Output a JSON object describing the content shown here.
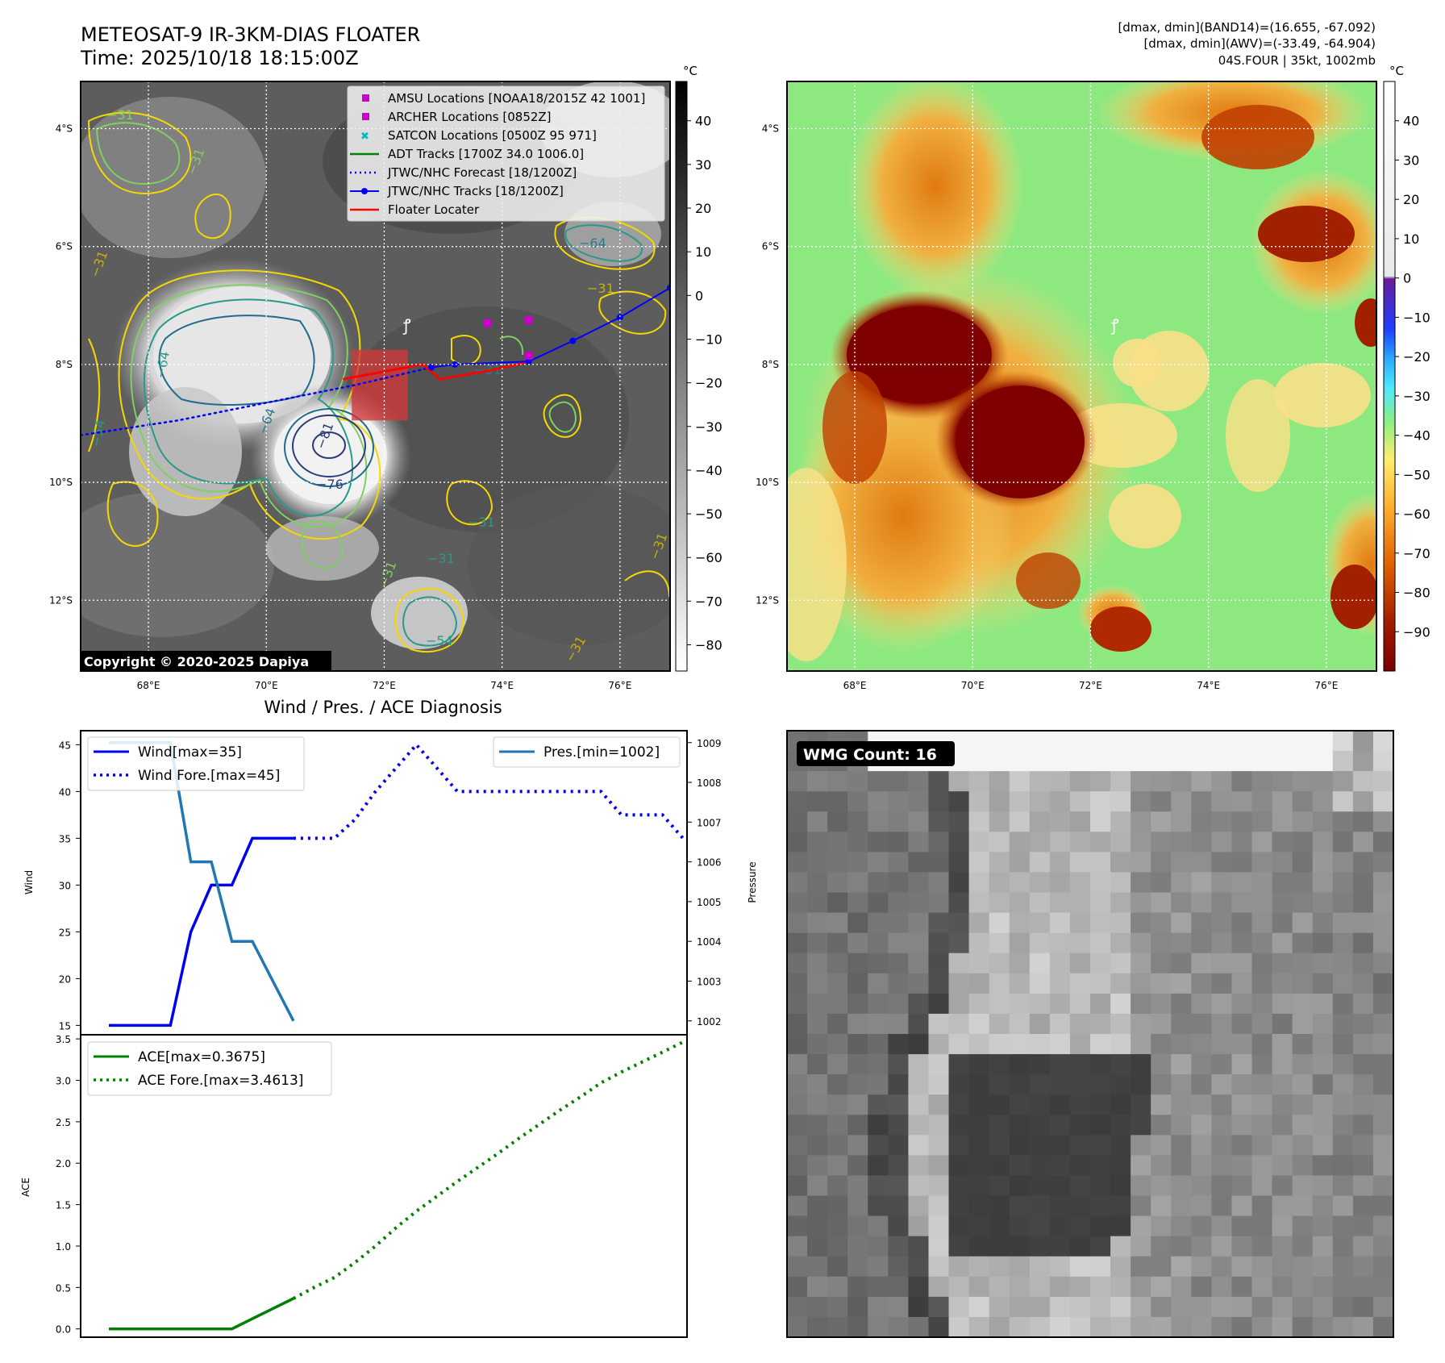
{
  "header": {
    "title_line1": "METEOSAT-9 IR-3KM-DIAS FLOATER",
    "title_line2": "Time: 2025/10/18 18:15:00Z",
    "info_line1": "[dmax, dmin](BAND14)=(16.655, -67.092)",
    "info_line2": "[dmax, dmin](AWV)=(-33.49, -64.904)",
    "info_line3": "04S.FOUR | 35kt, 1002mb"
  },
  "map_axes": {
    "lon_labels": [
      "68°E",
      "70°E",
      "72°E",
      "74°E",
      "76°E"
    ],
    "lon_values": [
      68,
      70,
      72,
      74,
      76
    ],
    "lon_range": [
      66.85,
      76.85
    ],
    "lat_labels": [
      "4°S",
      "6°S",
      "8°S",
      "10°S",
      "12°S"
    ],
    "lat_values": [
      -4,
      -6,
      -8,
      -10,
      -12
    ],
    "lat_range": [
      -3.2,
      -13.2
    ]
  },
  "ir_panel": {
    "colorbar_unit": "°C",
    "colorbar_ticks": [
      40,
      30,
      20,
      10,
      0,
      -10,
      -20,
      -30,
      -40,
      -50,
      -60,
      -70,
      -80
    ],
    "colorbar_range": [
      49,
      -86
    ],
    "contour_labels": [
      "−31",
      "−64",
      "−31",
      "−31",
      "−64",
      "−76",
      "−81",
      "−31",
      "−31",
      "−31",
      "−31",
      "−64",
      "−54",
      "−31",
      "−31",
      "−54",
      "−31"
    ],
    "copyright": "Copyright © 2020-2025 Dapiya",
    "legend": [
      {
        "label": "AMSU Locations [NOAA18/2015Z 42 1001]",
        "color": "#cc00cc",
        "kind": "square"
      },
      {
        "label": "ARCHER Locations [0852Z]",
        "color": "#cc00cc",
        "kind": "square"
      },
      {
        "label": "SATCON Locations [0500Z 95 971]",
        "color": "#00bbbb",
        "kind": "cross"
      },
      {
        "label": "ADT Tracks [1700Z 34.0 1006.0]",
        "color": "#008000",
        "kind": "line"
      },
      {
        "label": "JTWC/NHC Forecast [18/1200Z]",
        "color": "#0000ff",
        "kind": "dotted"
      },
      {
        "label": "JTWC/NHC Tracks [18/1200Z]",
        "color": "#0000ff",
        "kind": "marker-line"
      },
      {
        "label": "Floater Locater",
        "color": "#ff0000",
        "kind": "line"
      }
    ],
    "jtwc_track": [
      [
        72.8,
        -8.05
      ],
      [
        73.2,
        -8.0
      ],
      [
        74.45,
        -7.95
      ],
      [
        75.2,
        -7.6
      ],
      [
        76.0,
        -7.2
      ],
      [
        76.85,
        -6.7
      ]
    ],
    "jtwc_forecast": [
      [
        72.8,
        -8.05
      ],
      [
        71.5,
        -8.35
      ],
      [
        70.0,
        -8.65
      ],
      [
        68.5,
        -8.95
      ],
      [
        66.85,
        -9.2
      ]
    ],
    "floater_track": [
      [
        71.3,
        -8.25
      ],
      [
        72.65,
        -8.0
      ],
      [
        72.95,
        -8.25
      ],
      [
        73.8,
        -8.1
      ],
      [
        74.5,
        -7.95
      ]
    ],
    "amsu_points": [
      [
        73.75,
        -7.3
      ],
      [
        74.45,
        -7.25
      ],
      [
        74.45,
        -7.85
      ]
    ],
    "floater_box": {
      "lon": [
        71.45,
        72.4
      ],
      "lat": [
        -7.75,
        -8.95
      ]
    }
  },
  "awv_panel": {
    "colorbar_unit": "°C",
    "colorbar_ticks": [
      40,
      30,
      20,
      10,
      0,
      -10,
      -20,
      -30,
      -40,
      -50,
      -60,
      -70,
      -80,
      -90
    ],
    "colorbar_range": [
      50,
      -100
    ]
  },
  "diag": {
    "title": "Wind / Pres. / ACE Diagnosis",
    "wind_ylabel": "Wind",
    "pres_ylabel": "Pressure",
    "ace_ylabel": "ACE",
    "wind_ticks": [
      15,
      20,
      25,
      30,
      35,
      40,
      45
    ],
    "pres_ticks": [
      1002,
      1003,
      1004,
      1005,
      1006,
      1007,
      1008,
      1009
    ],
    "ace_ticks": [
      "0.0",
      "0.5",
      "1.0",
      "1.5",
      "2.0",
      "2.5",
      "3.0",
      "3.5"
    ],
    "legend_wind": "Wind[max=35]",
    "legend_wind_fore": "Wind Fore.[max=45]",
    "legend_pres": "Pres.[min=1002]",
    "legend_ace": "ACE[max=0.3675]",
    "legend_ace_fore": "ACE Fore.[max=3.4613]"
  },
  "chart_data": [
    {
      "type": "line",
      "title": "Wind / Pres. / ACE Diagnosis",
      "ylabel": "Wind",
      "y2label": "Pressure",
      "x": [
        0,
        1,
        2,
        3,
        4,
        5,
        6,
        7,
        8,
        9,
        10,
        11,
        12,
        13,
        14,
        15,
        16,
        17,
        18,
        19,
        20,
        21,
        22,
        23,
        24,
        25,
        26,
        27,
        28
      ],
      "ylim": [
        14,
        46.5
      ],
      "y2lim": [
        1001.65,
        1009.3
      ],
      "series": [
        {
          "name": "Wind[max=35]",
          "x": [
            0,
            3,
            4,
            5,
            6,
            7,
            8,
            9
          ],
          "values": [
            15,
            15,
            25,
            30,
            30,
            35,
            35,
            35
          ],
          "axis": "left",
          "style": "solid",
          "color": "#0000ee"
        },
        {
          "name": "Wind Fore.[max=45]",
          "x": [
            9,
            10,
            11,
            12,
            13,
            14,
            15,
            16,
            17,
            18,
            19,
            20,
            21,
            22,
            23,
            24,
            25,
            26,
            27,
            28
          ],
          "values": [
            35,
            35,
            35,
            37,
            40,
            42.5,
            45,
            42.5,
            40,
            40,
            40,
            40,
            40,
            40,
            40,
            40,
            37.5,
            37.5,
            37.5,
            35
          ],
          "axis": "left",
          "style": "dotted",
          "color": "#0000ee"
        },
        {
          "name": "Pres.[min=1002]",
          "x": [
            0,
            3,
            4,
            5,
            6,
            7,
            8,
            9
          ],
          "values": [
            1009,
            1009,
            1006,
            1006,
            1004,
            1004,
            1003,
            1002
          ],
          "axis": "right",
          "style": "solid",
          "color": "#1f77b4"
        }
      ]
    },
    {
      "type": "line",
      "ylabel": "ACE",
      "ylim": [
        -0.1,
        3.55
      ],
      "series": [
        {
          "name": "ACE[max=0.3675]",
          "x": [
            0,
            1,
            2,
            3,
            4,
            5,
            6,
            7,
            8,
            9
          ],
          "values": [
            0,
            0,
            0,
            0,
            0,
            0,
            0,
            0.1225,
            0.245,
            0.3675
          ],
          "style": "solid",
          "color": "#008000"
        },
        {
          "name": "ACE Fore.[max=3.4613]",
          "x": [
            9,
            10,
            11,
            12,
            13,
            14,
            15,
            16,
            17,
            18,
            19,
            20,
            21,
            22,
            23,
            24,
            25,
            26,
            27,
            28
          ],
          "values": [
            0.3675,
            0.5,
            0.62,
            0.8,
            1.0,
            1.22,
            1.42,
            1.6,
            1.78,
            1.95,
            2.12,
            2.3,
            2.47,
            2.64,
            2.8,
            2.97,
            3.1,
            3.22,
            3.34,
            3.4613
          ],
          "style": "dotted",
          "color": "#008000"
        }
      ]
    }
  ],
  "wmg": {
    "label": "WMG Count: 16"
  }
}
